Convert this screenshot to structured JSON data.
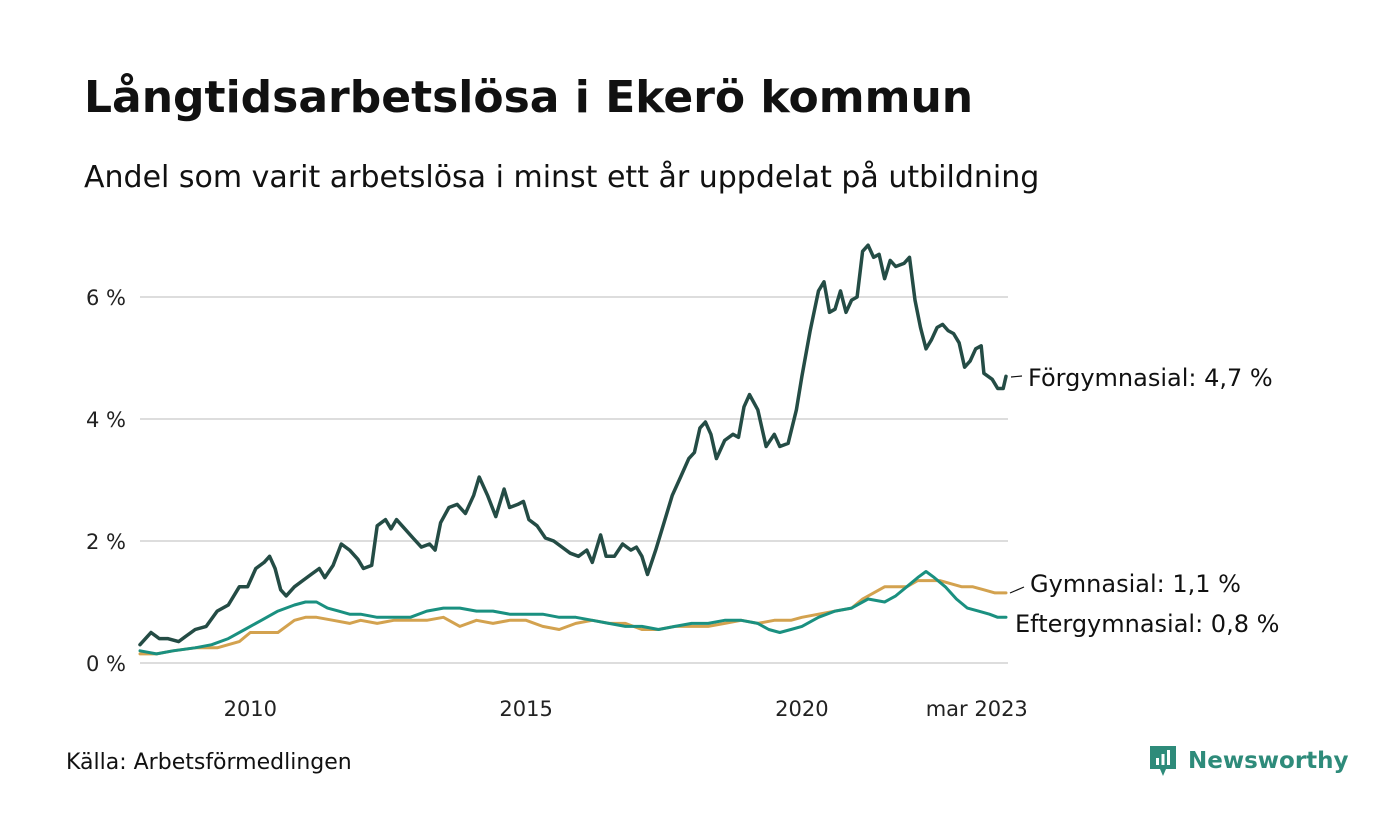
{
  "title": "Långtidsarbetslösa i Ekerö kommun",
  "subtitle": "Andel som varit arbetslösa i minst ett år uppdelat på utbildning",
  "source": "Källa: Arbetsförmedlingen",
  "brand": "Newsworthy",
  "colors": {
    "forgymnasial": "#244c45",
    "gymnasial": "#d3a24f",
    "eftergymnasial": "#1a9080",
    "grid": "#dddddd",
    "brand": "#2e8b7a"
  },
  "chart_data": {
    "type": "line",
    "title": "Långtidsarbetslösa i Ekerö kommun",
    "subtitle": "Andel som varit arbetslösa i minst ett år uppdelat på utbildning",
    "xlabel": "",
    "ylabel": "",
    "x_start": "2008-01",
    "x_end": "2023-03",
    "x_ticks": [
      {
        "x": 2010,
        "label": "2010"
      },
      {
        "x": 2015,
        "label": "2015"
      },
      {
        "x": 2020,
        "label": "2020"
      },
      {
        "x": 2023.17,
        "label": "mar 2023"
      }
    ],
    "y_ticks": [
      {
        "y": 0,
        "label": "0 %"
      },
      {
        "y": 2,
        "label": "2 %"
      },
      {
        "y": 4,
        "label": "4 %"
      },
      {
        "y": 6,
        "label": "6 %"
      }
    ],
    "ylim": [
      0,
      7
    ],
    "grid": true,
    "legend": "end-labels",
    "series": [
      {
        "name": "Förgymnasial",
        "end_label": "Förgymnasial: 4,7 %",
        "color": "#244c45",
        "points": [
          [
            2008.0,
            0.3
          ],
          [
            2008.2,
            0.5
          ],
          [
            2008.35,
            0.4
          ],
          [
            2008.5,
            0.4
          ],
          [
            2008.7,
            0.35
          ],
          [
            2008.85,
            0.45
          ],
          [
            2009.0,
            0.55
          ],
          [
            2009.2,
            0.6
          ],
          [
            2009.4,
            0.85
          ],
          [
            2009.6,
            0.95
          ],
          [
            2009.8,
            1.25
          ],
          [
            2009.95,
            1.25
          ],
          [
            2010.1,
            1.55
          ],
          [
            2010.25,
            1.65
          ],
          [
            2010.35,
            1.75
          ],
          [
            2010.45,
            1.55
          ],
          [
            2010.55,
            1.2
          ],
          [
            2010.65,
            1.1
          ],
          [
            2010.8,
            1.25
          ],
          [
            2010.95,
            1.35
          ],
          [
            2011.1,
            1.45
          ],
          [
            2011.25,
            1.55
          ],
          [
            2011.35,
            1.4
          ],
          [
            2011.5,
            1.6
          ],
          [
            2011.65,
            1.95
          ],
          [
            2011.8,
            1.85
          ],
          [
            2011.95,
            1.7
          ],
          [
            2012.05,
            1.55
          ],
          [
            2012.2,
            1.6
          ],
          [
            2012.3,
            2.25
          ],
          [
            2012.45,
            2.35
          ],
          [
            2012.55,
            2.2
          ],
          [
            2012.65,
            2.35
          ],
          [
            2012.8,
            2.2
          ],
          [
            2012.95,
            2.05
          ],
          [
            2013.1,
            1.9
          ],
          [
            2013.25,
            1.95
          ],
          [
            2013.35,
            1.85
          ],
          [
            2013.45,
            2.3
          ],
          [
            2013.6,
            2.55
          ],
          [
            2013.75,
            2.6
          ],
          [
            2013.9,
            2.45
          ],
          [
            2014.05,
            2.75
          ],
          [
            2014.15,
            3.05
          ],
          [
            2014.3,
            2.75
          ],
          [
            2014.45,
            2.4
          ],
          [
            2014.6,
            2.85
          ],
          [
            2014.7,
            2.55
          ],
          [
            2014.85,
            2.6
          ],
          [
            2014.95,
            2.65
          ],
          [
            2015.05,
            2.35
          ],
          [
            2015.2,
            2.25
          ],
          [
            2015.35,
            2.05
          ],
          [
            2015.5,
            2.0
          ],
          [
            2015.65,
            1.9
          ],
          [
            2015.8,
            1.8
          ],
          [
            2015.95,
            1.75
          ],
          [
            2016.1,
            1.85
          ],
          [
            2016.2,
            1.65
          ],
          [
            2016.35,
            2.1
          ],
          [
            2016.45,
            1.75
          ],
          [
            2016.6,
            1.75
          ],
          [
            2016.75,
            1.95
          ],
          [
            2016.9,
            1.85
          ],
          [
            2017.0,
            1.9
          ],
          [
            2017.1,
            1.75
          ],
          [
            2017.2,
            1.45
          ],
          [
            2017.35,
            1.85
          ],
          [
            2017.5,
            2.3
          ],
          [
            2017.65,
            2.75
          ],
          [
            2017.8,
            3.05
          ],
          [
            2017.95,
            3.35
          ],
          [
            2018.05,
            3.45
          ],
          [
            2018.15,
            3.85
          ],
          [
            2018.25,
            3.95
          ],
          [
            2018.35,
            3.75
          ],
          [
            2018.45,
            3.35
          ],
          [
            2018.6,
            3.65
          ],
          [
            2018.75,
            3.75
          ],
          [
            2018.85,
            3.7
          ],
          [
            2018.95,
            4.2
          ],
          [
            2019.05,
            4.4
          ],
          [
            2019.2,
            4.15
          ],
          [
            2019.35,
            3.55
          ],
          [
            2019.5,
            3.75
          ],
          [
            2019.6,
            3.55
          ],
          [
            2019.75,
            3.6
          ],
          [
            2019.9,
            4.15
          ],
          [
            2020.0,
            4.7
          ],
          [
            2020.15,
            5.45
          ],
          [
            2020.3,
            6.1
          ],
          [
            2020.4,
            6.25
          ],
          [
            2020.5,
            5.75
          ],
          [
            2020.6,
            5.8
          ],
          [
            2020.7,
            6.1
          ],
          [
            2020.8,
            5.75
          ],
          [
            2020.9,
            5.95
          ],
          [
            2021.0,
            6.0
          ],
          [
            2021.1,
            6.75
          ],
          [
            2021.2,
            6.85
          ],
          [
            2021.3,
            6.65
          ],
          [
            2021.4,
            6.7
          ],
          [
            2021.5,
            6.3
          ],
          [
            2021.6,
            6.6
          ],
          [
            2021.7,
            6.5
          ],
          [
            2021.85,
            6.55
          ],
          [
            2021.95,
            6.65
          ],
          [
            2022.05,
            5.95
          ],
          [
            2022.15,
            5.5
          ],
          [
            2022.25,
            5.15
          ],
          [
            2022.35,
            5.3
          ],
          [
            2022.45,
            5.5
          ],
          [
            2022.55,
            5.55
          ],
          [
            2022.65,
            5.45
          ],
          [
            2022.75,
            5.4
          ],
          [
            2022.85,
            5.25
          ],
          [
            2022.95,
            4.85
          ],
          [
            2023.05,
            4.95
          ],
          [
            2023.15,
            5.15
          ],
          [
            2023.25,
            5.2
          ],
          [
            2023.3,
            4.75
          ],
          [
            2023.45,
            4.65
          ],
          [
            2023.55,
            4.5
          ],
          [
            2023.65,
            4.5
          ],
          [
            2023.7,
            4.7
          ]
        ]
      },
      {
        "name": "Gymnasial",
        "end_label": "Gymnasial: 1,1 %",
        "color": "#d3a24f",
        "points": [
          [
            2008.0,
            0.15
          ],
          [
            2008.3,
            0.15
          ],
          [
            2008.6,
            0.2
          ],
          [
            2009.0,
            0.25
          ],
          [
            2009.4,
            0.25
          ],
          [
            2009.8,
            0.35
          ],
          [
            2010.0,
            0.5
          ],
          [
            2010.2,
            0.5
          ],
          [
            2010.5,
            0.5
          ],
          [
            2010.8,
            0.7
          ],
          [
            2011.0,
            0.75
          ],
          [
            2011.2,
            0.75
          ],
          [
            2011.5,
            0.7
          ],
          [
            2011.8,
            0.65
          ],
          [
            2012.0,
            0.7
          ],
          [
            2012.3,
            0.65
          ],
          [
            2012.6,
            0.7
          ],
          [
            2012.9,
            0.7
          ],
          [
            2013.2,
            0.7
          ],
          [
            2013.5,
            0.75
          ],
          [
            2013.8,
            0.6
          ],
          [
            2014.1,
            0.7
          ],
          [
            2014.4,
            0.65
          ],
          [
            2014.7,
            0.7
          ],
          [
            2015.0,
            0.7
          ],
          [
            2015.3,
            0.6
          ],
          [
            2015.6,
            0.55
          ],
          [
            2015.9,
            0.65
          ],
          [
            2016.2,
            0.7
          ],
          [
            2016.5,
            0.65
          ],
          [
            2016.8,
            0.65
          ],
          [
            2017.1,
            0.55
          ],
          [
            2017.4,
            0.55
          ],
          [
            2017.7,
            0.6
          ],
          [
            2018.0,
            0.6
          ],
          [
            2018.3,
            0.6
          ],
          [
            2018.6,
            0.65
          ],
          [
            2018.9,
            0.7
          ],
          [
            2019.2,
            0.65
          ],
          [
            2019.5,
            0.7
          ],
          [
            2019.8,
            0.7
          ],
          [
            2020.0,
            0.75
          ],
          [
            2020.3,
            0.8
          ],
          [
            2020.6,
            0.85
          ],
          [
            2020.9,
            0.9
          ],
          [
            2021.1,
            1.05
          ],
          [
            2021.3,
            1.15
          ],
          [
            2021.5,
            1.25
          ],
          [
            2021.7,
            1.25
          ],
          [
            2021.9,
            1.25
          ],
          [
            2022.1,
            1.35
          ],
          [
            2022.3,
            1.35
          ],
          [
            2022.5,
            1.35
          ],
          [
            2022.7,
            1.3
          ],
          [
            2022.9,
            1.25
          ],
          [
            2023.1,
            1.25
          ],
          [
            2023.3,
            1.2
          ],
          [
            2023.5,
            1.15
          ],
          [
            2023.7,
            1.15
          ]
        ]
      },
      {
        "name": "Eftergymnasial",
        "end_label": "Eftergymnasial: 0,8 %",
        "color": "#1a9080",
        "points": [
          [
            2008.0,
            0.2
          ],
          [
            2008.3,
            0.15
          ],
          [
            2008.6,
            0.2
          ],
          [
            2009.0,
            0.25
          ],
          [
            2009.3,
            0.3
          ],
          [
            2009.6,
            0.4
          ],
          [
            2009.9,
            0.55
          ],
          [
            2010.2,
            0.7
          ],
          [
            2010.5,
            0.85
          ],
          [
            2010.8,
            0.95
          ],
          [
            2011.0,
            1.0
          ],
          [
            2011.2,
            1.0
          ],
          [
            2011.4,
            0.9
          ],
          [
            2011.6,
            0.85
          ],
          [
            2011.8,
            0.8
          ],
          [
            2012.0,
            0.8
          ],
          [
            2012.3,
            0.75
          ],
          [
            2012.6,
            0.75
          ],
          [
            2012.9,
            0.75
          ],
          [
            2013.2,
            0.85
          ],
          [
            2013.5,
            0.9
          ],
          [
            2013.8,
            0.9
          ],
          [
            2014.1,
            0.85
          ],
          [
            2014.4,
            0.85
          ],
          [
            2014.7,
            0.8
          ],
          [
            2015.0,
            0.8
          ],
          [
            2015.3,
            0.8
          ],
          [
            2015.6,
            0.75
          ],
          [
            2015.9,
            0.75
          ],
          [
            2016.2,
            0.7
          ],
          [
            2016.5,
            0.65
          ],
          [
            2016.8,
            0.6
          ],
          [
            2017.1,
            0.6
          ],
          [
            2017.4,
            0.55
          ],
          [
            2017.7,
            0.6
          ],
          [
            2018.0,
            0.65
          ],
          [
            2018.3,
            0.65
          ],
          [
            2018.6,
            0.7
          ],
          [
            2018.9,
            0.7
          ],
          [
            2019.2,
            0.65
          ],
          [
            2019.4,
            0.55
          ],
          [
            2019.6,
            0.5
          ],
          [
            2019.8,
            0.55
          ],
          [
            2020.0,
            0.6
          ],
          [
            2020.3,
            0.75
          ],
          [
            2020.6,
            0.85
          ],
          [
            2020.9,
            0.9
          ],
          [
            2021.2,
            1.05
          ],
          [
            2021.5,
            1.0
          ],
          [
            2021.7,
            1.1
          ],
          [
            2021.9,
            1.25
          ],
          [
            2022.1,
            1.4
          ],
          [
            2022.25,
            1.5
          ],
          [
            2022.4,
            1.4
          ],
          [
            2022.6,
            1.25
          ],
          [
            2022.8,
            1.05
          ],
          [
            2023.0,
            0.9
          ],
          [
            2023.2,
            0.85
          ],
          [
            2023.4,
            0.8
          ],
          [
            2023.55,
            0.75
          ],
          [
            2023.7,
            0.75
          ]
        ]
      }
    ]
  }
}
